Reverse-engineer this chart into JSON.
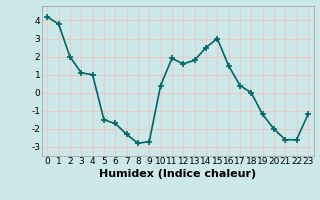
{
  "x": [
    0,
    1,
    2,
    3,
    4,
    5,
    6,
    7,
    8,
    9,
    10,
    11,
    12,
    13,
    14,
    15,
    16,
    17,
    18,
    19,
    20,
    21,
    22,
    23
  ],
  "y": [
    4.2,
    3.8,
    2.0,
    1.1,
    1.0,
    -1.5,
    -1.7,
    -2.3,
    -2.8,
    -2.7,
    0.4,
    1.9,
    1.6,
    1.8,
    2.5,
    3.0,
    1.5,
    0.4,
    0.0,
    -1.2,
    -2.0,
    -2.6,
    -2.6,
    -1.2
  ],
  "xlabel": "Humidex (Indice chaleur)",
  "ylim": [
    -3.5,
    4.8
  ],
  "xlim": [
    -0.5,
    23.5
  ],
  "yticks": [
    -3,
    -2,
    -1,
    0,
    1,
    2,
    3,
    4
  ],
  "xticks": [
    0,
    1,
    2,
    3,
    4,
    5,
    6,
    7,
    8,
    9,
    10,
    11,
    12,
    13,
    14,
    15,
    16,
    17,
    18,
    19,
    20,
    21,
    22,
    23
  ],
  "line_color": "#006666",
  "marker": "+",
  "bg_color": "#cce8e8",
  "grid_color": "#e8c8c8",
  "tick_fontsize": 6.5,
  "xlabel_fontsize": 8,
  "linewidth": 1.2,
  "markersize": 4
}
